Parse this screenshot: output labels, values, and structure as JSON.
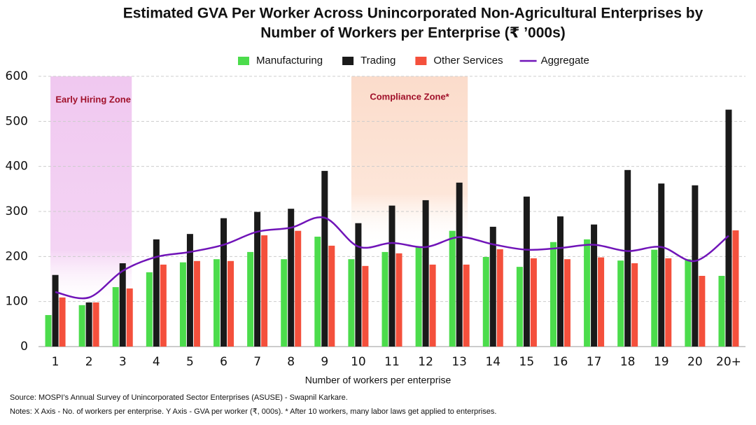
{
  "chart_data": {
    "type": "bar",
    "title": [
      "Estimated GVA Per Worker Across Unincorporated Non-Agricultural Enterprises by",
      "Number of Workers per Enterprise (₹ ’000s)"
    ],
    "x_label": "Number of workers per enterprise",
    "categories": [
      "1",
      "2",
      "3",
      "4",
      "5",
      "6",
      "7",
      "8",
      "9",
      "10",
      "11",
      "12",
      "13",
      "14",
      "15",
      "16",
      "17",
      "18",
      "19",
      "20",
      "20+"
    ],
    "series": [
      {
        "name": "Manufacturing",
        "color": "#4cdc4c",
        "values": [
          70,
          92,
          132,
          165,
          187,
          194,
          210,
          194,
          244,
          194,
          210,
          221,
          257,
          199,
          177,
          232,
          238,
          191,
          215,
          194,
          157
        ]
      },
      {
        "name": "Trading",
        "color": "#1a1a1a",
        "values": [
          159,
          98,
          185,
          238,
          250,
          285,
          299,
          306,
          390,
          274,
          313,
          325,
          364,
          266,
          333,
          289,
          271,
          392,
          362,
          358,
          526
        ]
      },
      {
        "name": "Other Services",
        "color": "#f4503c",
        "values": [
          109,
          98,
          129,
          182,
          190,
          190,
          247,
          257,
          224,
          179,
          207,
          182,
          182,
          216,
          196,
          194,
          198,
          185,
          196,
          157,
          258
        ]
      },
      {
        "name": "Aggregate",
        "type": "line",
        "color": "#7014b8",
        "values": [
          121,
          109,
          168,
          199,
          210,
          226,
          255,
          264,
          286,
          222,
          230,
          221,
          243,
          227,
          215,
          219,
          226,
          212,
          221,
          190,
          246
        ]
      }
    ],
    "ylim": [
      0,
      600
    ],
    "yticks": [
      0,
      100,
      200,
      300,
      400,
      500,
      600
    ],
    "grid": true,
    "annotations": [
      "Early Hiring Zone",
      "Compliance Zone*"
    ],
    "source": "Source: MOSPI’s Annual Survey of Unincorporated Sector Enterprises (ASUSE) - Swapnil Karkare.",
    "notes": "Notes: X Axis - No. of workers per enterprise. Y Axis - GVA per worker (₹, 000s). * After 10 workers, many labor laws get applied to enterprises."
  }
}
